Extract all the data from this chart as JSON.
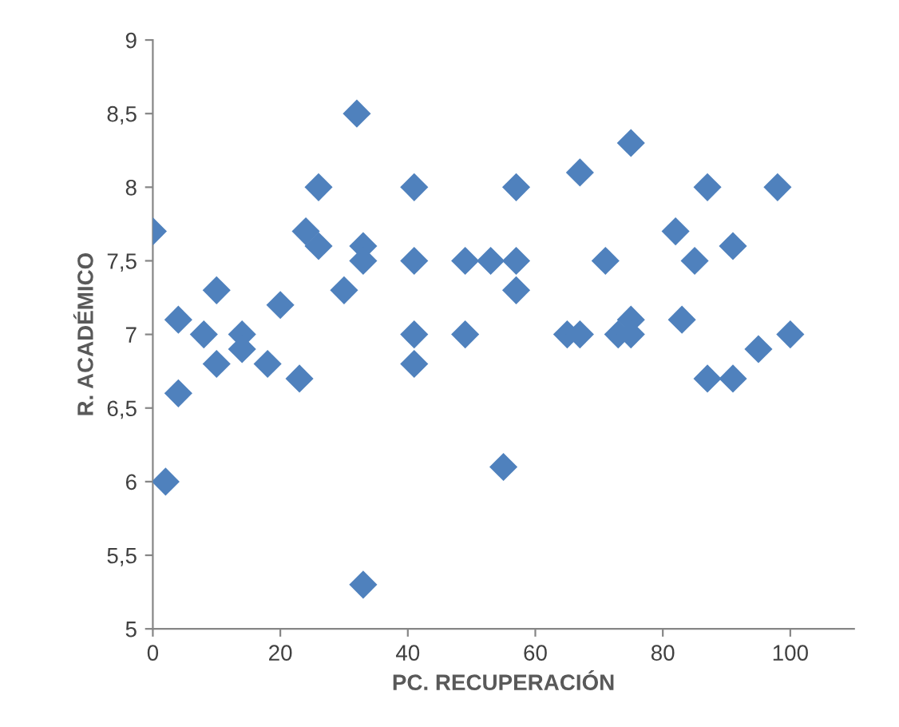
{
  "chart_data": {
    "type": "scatter",
    "xlabel": "PC. RECUPERACIÓN",
    "ylabel": "R. ACADÉMICO",
    "marker": "diamond",
    "grid": false,
    "legend": false,
    "xlim": [
      0,
      110
    ],
    "xticks": [
      0,
      20,
      40,
      60,
      80,
      100
    ],
    "ylim": [
      5,
      9
    ],
    "yticks": [
      5,
      {
        "value": 5.5,
        "label": "5,5"
      },
      6,
      {
        "value": 6.5,
        "label": "6,5"
      },
      7,
      {
        "value": 7.5,
        "label": "7,5"
      },
      8,
      {
        "value": 8.5,
        "label": "8,5"
      },
      9
    ],
    "series": [
      {
        "color": "#4f81bd",
        "x": [
          0,
          2,
          4,
          4,
          8,
          10,
          10,
          14,
          14,
          18,
          20,
          23,
          24,
          25,
          26,
          26,
          30,
          32,
          33,
          33,
          33,
          41,
          41,
          41,
          41,
          49,
          49,
          53,
          55,
          57,
          57,
          57,
          65,
          67,
          67,
          71,
          73,
          75,
          75,
          75,
          82,
          83,
          85,
          87,
          87,
          91,
          91,
          95,
          98,
          100
        ],
        "values": [
          7.7,
          6.0,
          6.6,
          7.1,
          7.0,
          7.3,
          6.8,
          7.0,
          6.9,
          6.8,
          7.2,
          6.7,
          7.7,
          null,
          7.6,
          8.0,
          7.3,
          8.5,
          7.6,
          7.5,
          5.3,
          8.0,
          7.5,
          7.0,
          6.8,
          7.5,
          7.0,
          7.5,
          6.1,
          8.0,
          7.5,
          7.3,
          7.0,
          7.0,
          8.1,
          7.5,
          7.0,
          8.3,
          7.1,
          7.0,
          7.7,
          7.1,
          7.5,
          8.0,
          6.7,
          7.6,
          6.7,
          6.9,
          8.0,
          7.0
        ]
      }
    ]
  }
}
